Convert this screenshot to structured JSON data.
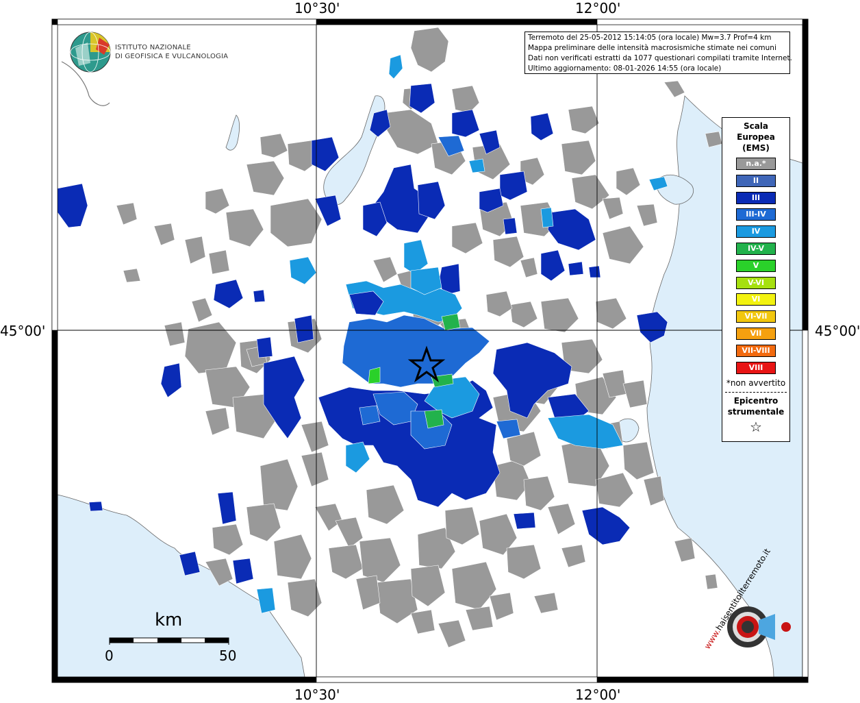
{
  "coordinates": {
    "top": [
      "10°30'",
      "12°00'"
    ],
    "bottom": [
      "10°30'",
      "12°00'"
    ],
    "left": "45°00'",
    "right": "45°00'"
  },
  "logo": {
    "line1": "ISTITUTO NAZIONALE",
    "line2": "DI GEOFISICA E VULCANOLOGIA"
  },
  "info": {
    "line1": "Terremoto del 25-05-2012 15:14:05 (ora locale) Mw=3.7 Prof=4 km",
    "line2": "Mappa preliminare delle intensità macrosismiche stimate nei comuni",
    "line3": "Dati non verificati estratti da 1077 questionari compilati tramite Internet.",
    "line4": "Ultimo aggiornamento: 08-01-2026 14:55 (ora locale)"
  },
  "legend": {
    "title_line1": "Scala",
    "title_line2": "Europea",
    "title_line3": "(EMS)",
    "items": [
      {
        "label": "n.a.*",
        "color": "#999999"
      },
      {
        "label": "II",
        "color": "#3f66b8"
      },
      {
        "label": "III",
        "color": "#0a2bb5"
      },
      {
        "label": "III-IV",
        "color": "#1e6ad4"
      },
      {
        "label": "IV",
        "color": "#1b9ae0"
      },
      {
        "label": "IV-V",
        "color": "#22b24c"
      },
      {
        "label": "V",
        "color": "#2ad12a"
      },
      {
        "label": "V-VI",
        "color": "#a6e00f"
      },
      {
        "label": "VI",
        "color": "#f2f20f"
      },
      {
        "label": "VI-VII",
        "color": "#f2c70f"
      },
      {
        "label": "VII",
        "color": "#f5a00f"
      },
      {
        "label": "VII-VIII",
        "color": "#f26a0f"
      },
      {
        "label": "VIII",
        "color": "#e81414"
      }
    ],
    "note": "*non avvertito",
    "epicenter_line1": "Epicentro",
    "epicenter_line2": "strumentale",
    "epicenter_symbol": "☆"
  },
  "scale_bar": {
    "unit": "km",
    "start": "0",
    "end": "50"
  },
  "colors": {
    "sea": "#ddeefa",
    "frame": "#000000",
    "na": "#999999",
    "ii": "#3f66b8",
    "iii": "#0a2bb5",
    "iii_iv": "#1e6ad4",
    "iv": "#1b9ae0",
    "iv_v": "#22b24c",
    "v": "#2ad12a"
  },
  "footer_logo": {
    "text": "haisentitoilterremoto.it",
    "prefix": "www."
  }
}
